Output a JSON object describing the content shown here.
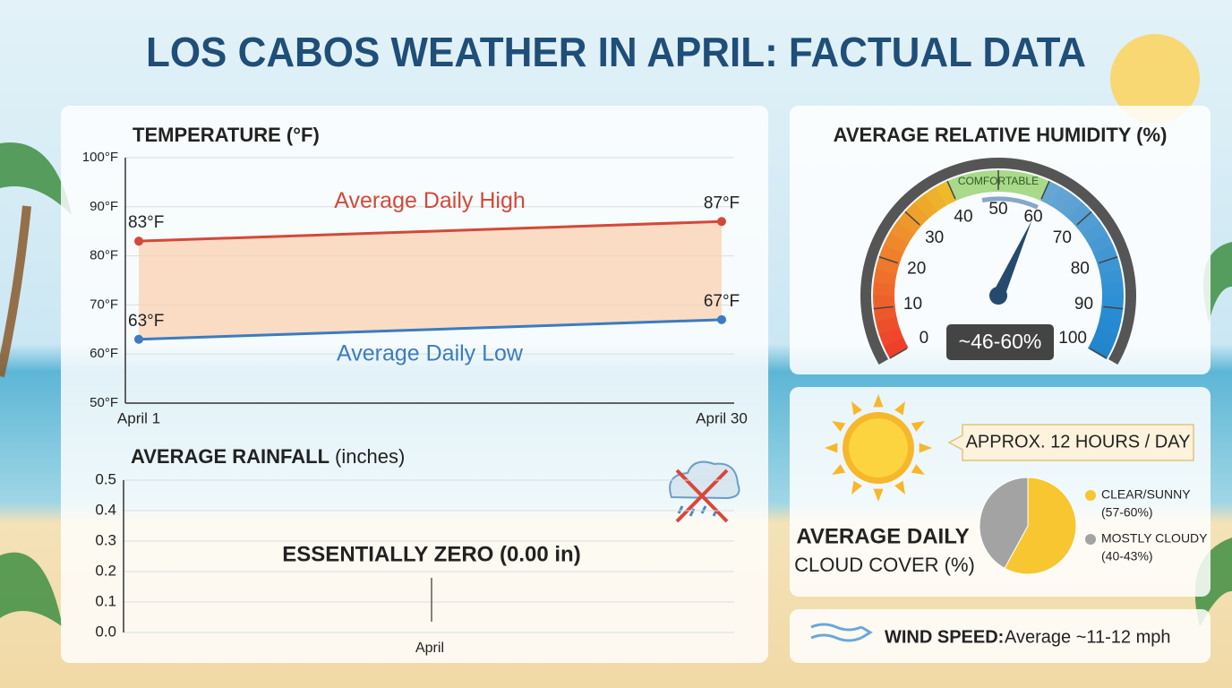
{
  "title": "LOS CABOS WEATHER IN APRIL: FACTUAL DATA",
  "chart_data": [
    {
      "type": "line",
      "title": "TEMPERATURE (°F)",
      "categories": [
        "April 1",
        "April 30"
      ],
      "series": [
        {
          "name": "Average Daily High",
          "color": "#d2493a",
          "values": [
            83,
            87
          ],
          "value_labels": [
            "83°F",
            "87°F"
          ]
        },
        {
          "name": "Average Daily Low",
          "color": "#3b7cc0",
          "values": [
            63,
            67
          ],
          "value_labels": [
            "63°F",
            "67°F"
          ]
        }
      ],
      "fill_between": true,
      "fill_color": "#fbd2b0",
      "ylim": [
        50,
        100
      ],
      "yticks": [
        {
          "value": 50,
          "label": "50°F"
        },
        {
          "value": 60,
          "label": "60°F"
        },
        {
          "value": 70,
          "label": "70°F"
        },
        {
          "value": 80,
          "label": "80°F"
        },
        {
          "value": 90,
          "label": "90°F"
        },
        {
          "value": 100,
          "label": "100°F"
        }
      ],
      "grid": true
    },
    {
      "type": "bar",
      "title": "AVERAGE RAINFALL",
      "unit": "(inches)",
      "categories": [
        "April"
      ],
      "values": [
        0
      ],
      "color": "#5fb0b8",
      "annotation": "ESSENTIALLY ZERO (0.00 in)",
      "ylim": [
        0,
        0.5
      ],
      "yticks": [
        {
          "value": 0,
          "label": "0.0"
        },
        0.1,
        0.2,
        0.3,
        0.4,
        0.5
      ],
      "grid": true
    },
    {
      "type": "gauge",
      "title": "AVERAGE RELATIVE HUMIDITY (%)",
      "values": [
        46,
        60
      ],
      "value_label": "~46-60%",
      "ylim": [
        0,
        100
      ],
      "yticks": [
        0,
        10,
        20,
        30,
        40,
        50,
        60,
        70,
        80,
        90,
        100
      ],
      "band": [
        40,
        60
      ],
      "band_label": "COMFORTABLE",
      "band_color": "#a9d98a"
    },
    {
      "type": "pie",
      "title": "AVERAGE DAILY",
      "subtitle": "CLOUD COVER (%)",
      "categories": [
        "CLEAR/SUNNY",
        "MOSTLY CLOUDY"
      ],
      "category_notes": [
        "(57-60%)",
        "(40-43%)"
      ],
      "values": [
        58,
        42
      ],
      "colors": [
        "#f7c631",
        "#a3a3a3"
      ],
      "annotation": "APPROX. 12 HOURS / DAY"
    }
  ],
  "wind": {
    "label": "WIND SPEED:",
    "text": "Average ~11-12 mph"
  }
}
